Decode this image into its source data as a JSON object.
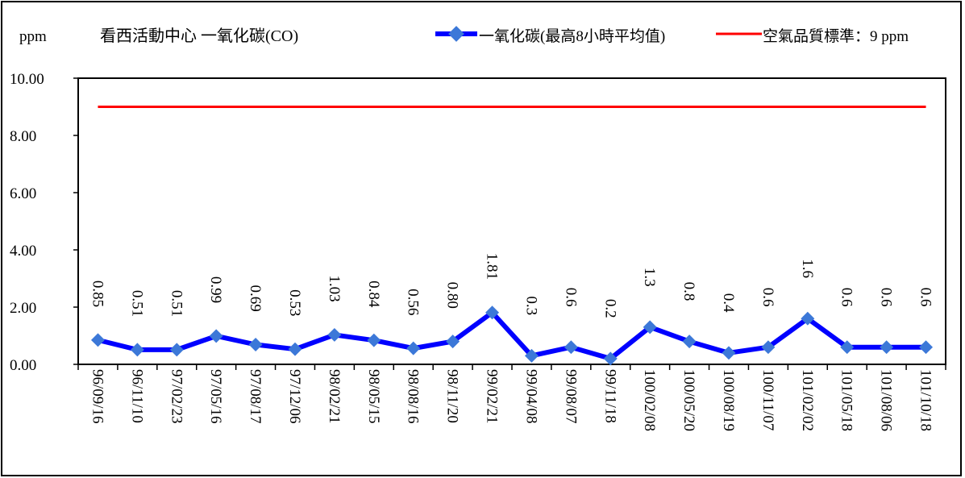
{
  "chart_data": {
    "type": "line",
    "title": "看西活動中心  一氧化碳(CO)",
    "ylabel": "ppm",
    "xlabel": "",
    "ylim": [
      0,
      10
    ],
    "yticks": [
      "0.00",
      "2.00",
      "4.00",
      "6.00",
      "8.00",
      "10.00"
    ],
    "grid": false,
    "legend_position": "top-right",
    "categories": [
      "96/09/16",
      "96/11/10",
      "97/02/23",
      "97/05/16",
      "97/08/17",
      "97/12/06",
      "98/02/21",
      "98/05/15",
      "98/08/16",
      "98/11/20",
      "99/02/21",
      "99/04/08",
      "99/08/07",
      "99/11/18",
      "100/02/08",
      "100/05/20",
      "100/08/19",
      "100/11/07",
      "101/02/02",
      "101/05/18",
      "101/08/06",
      "101/10/18"
    ],
    "series": [
      {
        "name": "一氧化碳(最高8小時平均值)",
        "color": "#0000ff",
        "marker_color": "#3c78d8",
        "values": [
          0.85,
          0.51,
          0.51,
          0.99,
          0.69,
          0.53,
          1.03,
          0.84,
          0.56,
          0.8,
          1.81,
          0.3,
          0.6,
          0.2,
          1.3,
          0.8,
          0.4,
          0.6,
          1.6,
          0.6,
          0.6,
          0.6
        ],
        "labels": [
          "0.85",
          "0.51",
          "0.51",
          "0.99",
          "0.69",
          "0.53",
          "1.03",
          "0.84",
          "0.56",
          "0.80",
          "1.81",
          "0.3",
          "0.6",
          "0.2",
          "1.3",
          "0.8",
          "0.4",
          "0.6",
          "1.6",
          "0.6",
          "0.6",
          "0.6"
        ]
      },
      {
        "name": "空氣品質標準：9 ppm",
        "color": "#ff0000",
        "values": [
          9,
          9,
          9,
          9,
          9,
          9,
          9,
          9,
          9,
          9,
          9,
          9,
          9,
          9,
          9,
          9,
          9,
          9,
          9,
          9,
          9,
          9
        ]
      }
    ]
  }
}
